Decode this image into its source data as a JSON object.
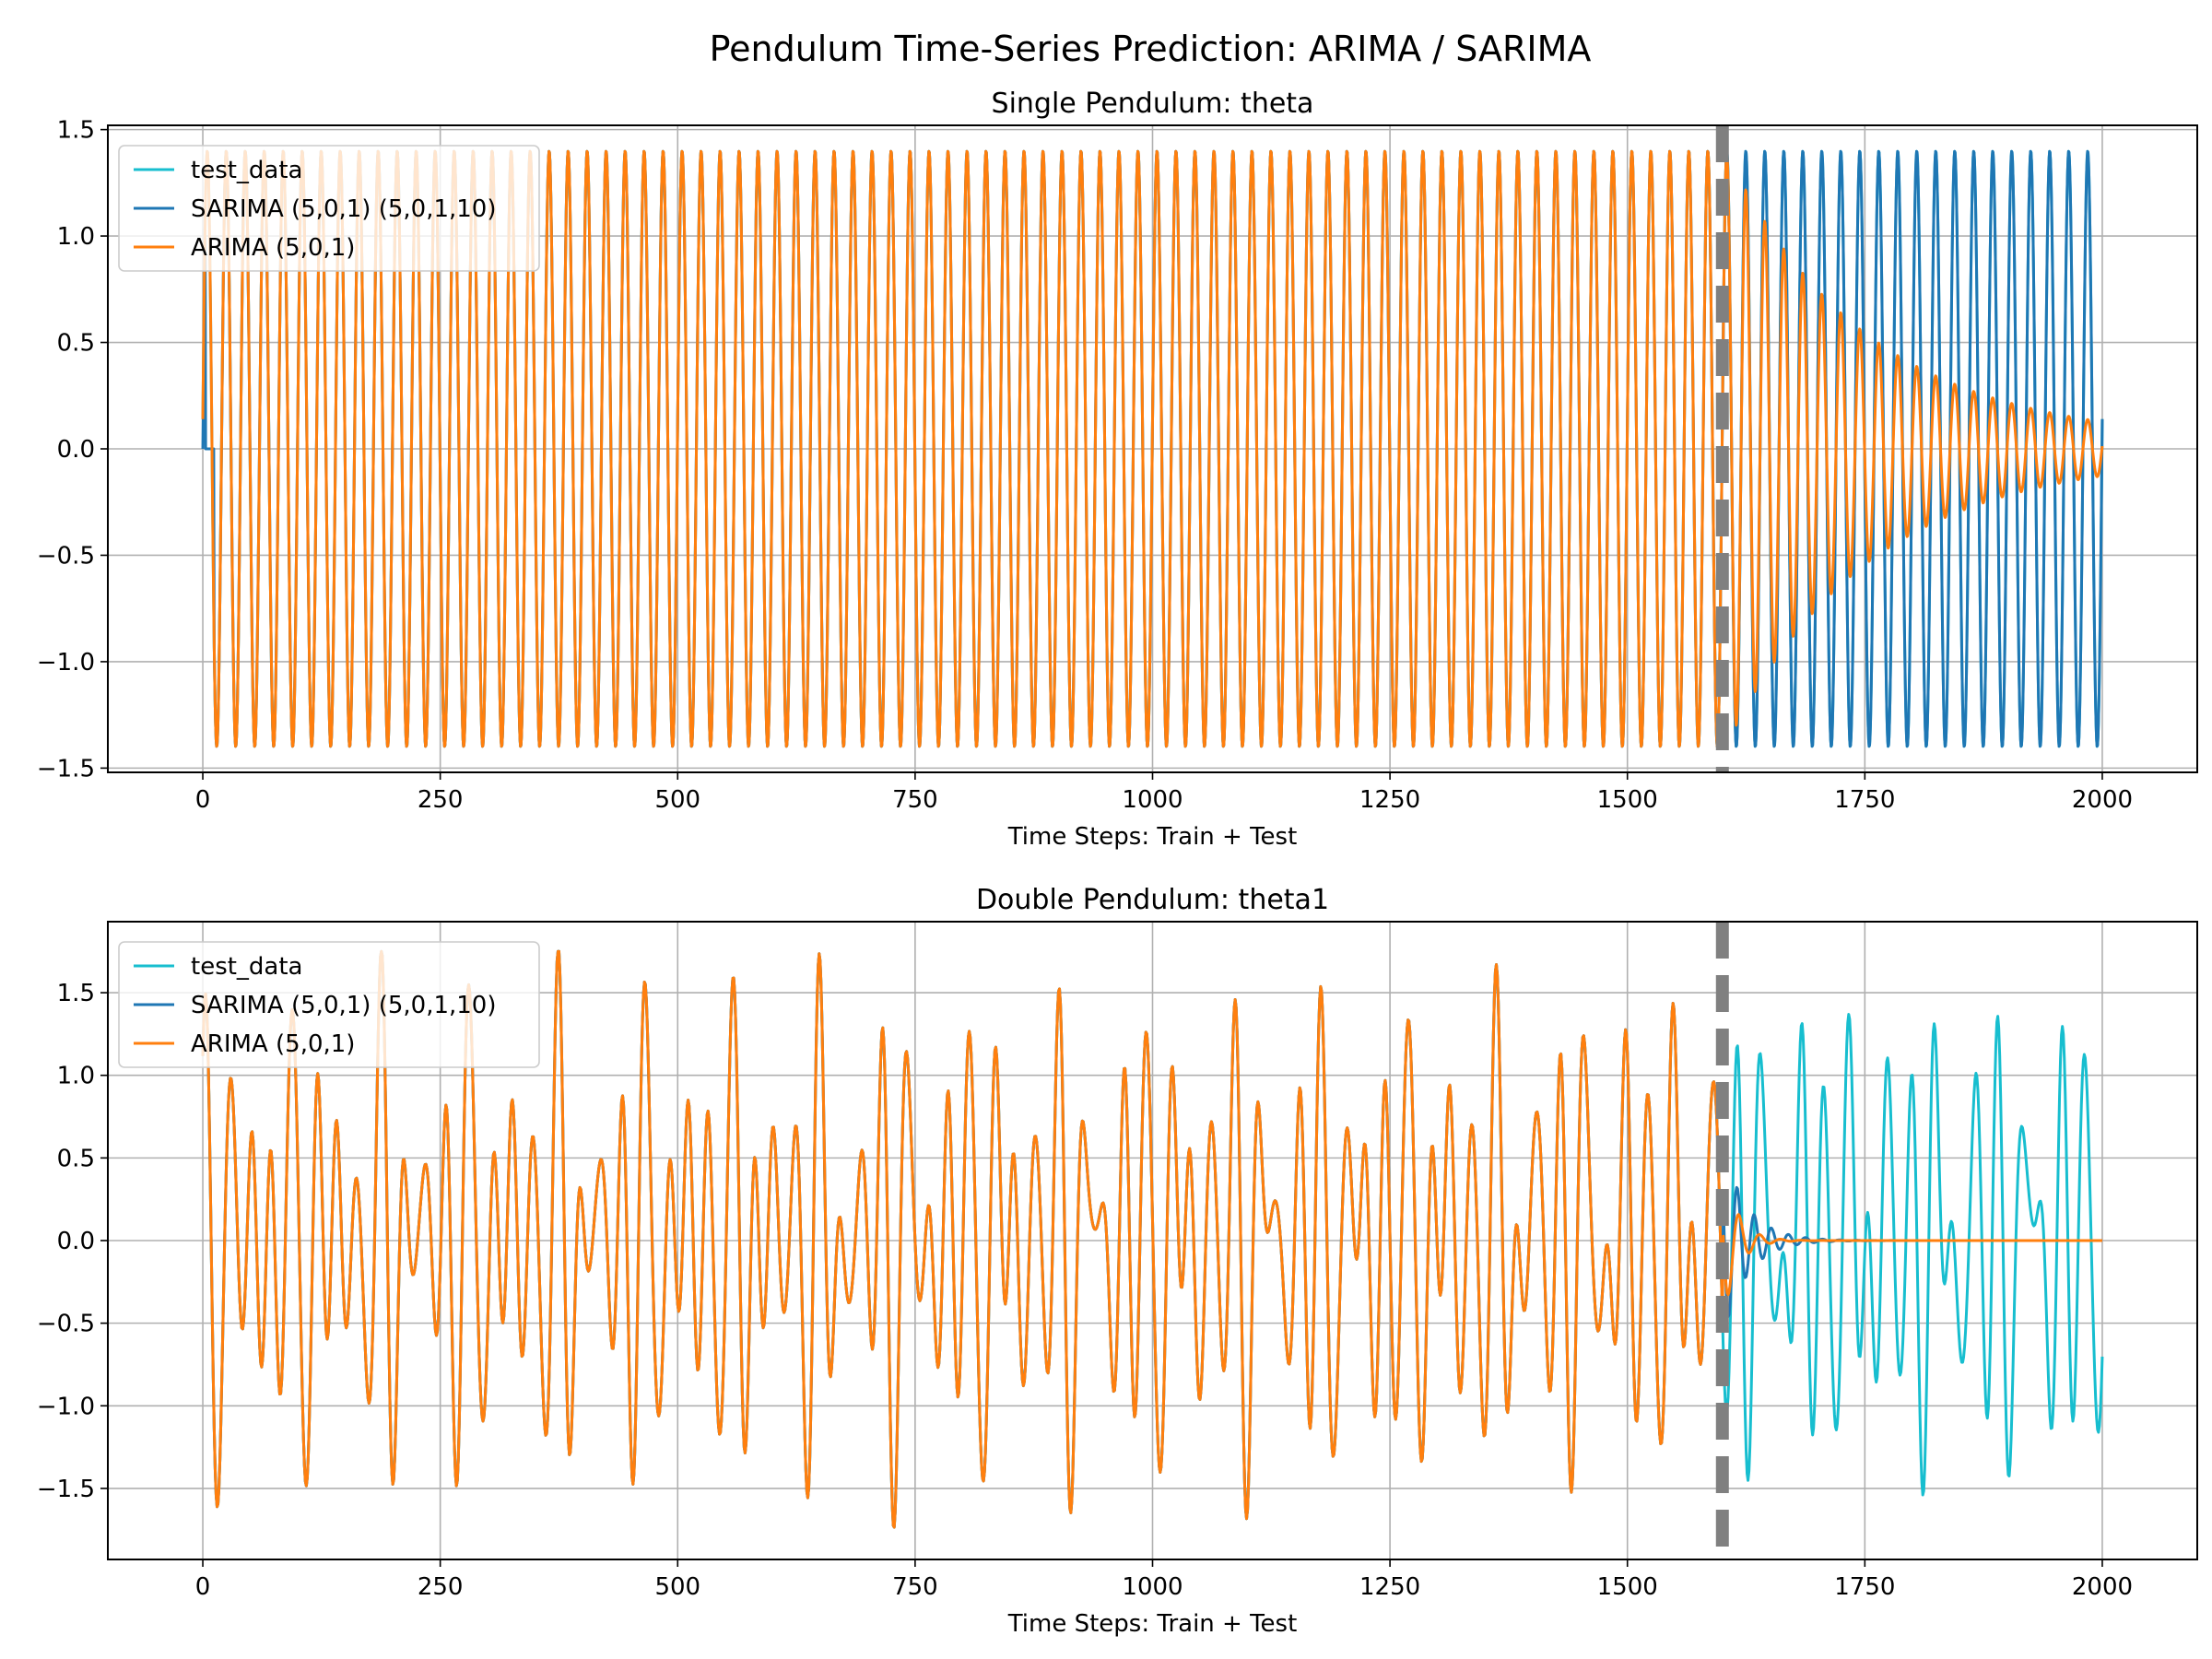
{
  "figure": {
    "suptitle": "Pendulum Time-Series Prediction: ARIMA / SARIMA"
  },
  "colors": {
    "test_data": "#17becf",
    "sarima": "#1f77b4",
    "arima": "#ff7f0e",
    "split_line": "#808080",
    "grid": "#b0b0b0"
  },
  "chart_data": [
    {
      "type": "line",
      "title": "Single Pendulum: theta",
      "xlabel": "Time Steps: Train + Test",
      "ylabel": "",
      "xlim": [
        -100,
        2100
      ],
      "ylim": [
        -1.52,
        1.52
      ],
      "xticks": [
        0,
        250,
        500,
        750,
        1000,
        1250,
        1500,
        1750,
        2000
      ],
      "xtick_labels": [
        "0",
        "250",
        "500",
        "750",
        "1000",
        "1250",
        "1500",
        "1750",
        "2000"
      ],
      "yticks": [
        -1.5,
        -1.0,
        -0.5,
        0.0,
        0.5,
        1.0,
        1.5
      ],
      "ytick_labels": [
        "−1.5",
        "−1.0",
        "−0.5",
        "0.0",
        "0.5",
        "1.0",
        "1.5"
      ],
      "grid": true,
      "legend": "upper-left",
      "split_x": 1600,
      "x_end": 2000,
      "series": [
        {
          "name": "test_data",
          "key": "test_data",
          "description": "sine oscillation, amplitude 1.4, period ~20 steps",
          "amplitude": 1.4,
          "period": 20
        },
        {
          "name": "SARIMA (5,0,1) (5,0,1,10)",
          "key": "sarima",
          "forecast_after_split": "sustained oscillation, amplitude 1.4"
        },
        {
          "name": "ARIMA (5,0,1)",
          "key": "arima",
          "forecast_after_split": "damped oscillation decaying to amplitude ~0.1 at 2000"
        }
      ]
    },
    {
      "type": "line",
      "title": "Double Pendulum: theta1",
      "xlabel": "Time Steps: Train + Test",
      "ylabel": "",
      "xlim": [
        -100,
        2100
      ],
      "ylim": [
        -1.93,
        1.93
      ],
      "xticks": [
        0,
        250,
        500,
        750,
        1000,
        1250,
        1500,
        1750,
        2000
      ],
      "xtick_labels": [
        "0",
        "250",
        "500",
        "750",
        "1000",
        "1250",
        "1500",
        "1750",
        "2000"
      ],
      "yticks": [
        -1.5,
        -1.0,
        -0.5,
        0.0,
        0.5,
        1.0,
        1.5
      ],
      "ytick_labels": [
        "−1.5",
        "−1.0",
        "−0.5",
        "0.0",
        "0.5",
        "1.0",
        "1.5"
      ],
      "grid": true,
      "legend": "upper-left",
      "split_x": 1600,
      "x_end": 2000,
      "series": [
        {
          "name": "test_data",
          "key": "test_data",
          "description": "chaotic oscillation between about -1.75 and 1.75"
        },
        {
          "name": "SARIMA (5,0,1) (5,0,1,10)",
          "key": "sarima",
          "forecast_after_split": "brief damped oscillation then flat at 0.0"
        },
        {
          "name": "ARIMA (5,0,1)",
          "key": "arima",
          "forecast_after_split": "decays to flat 0.0 by ~1680"
        }
      ]
    }
  ]
}
